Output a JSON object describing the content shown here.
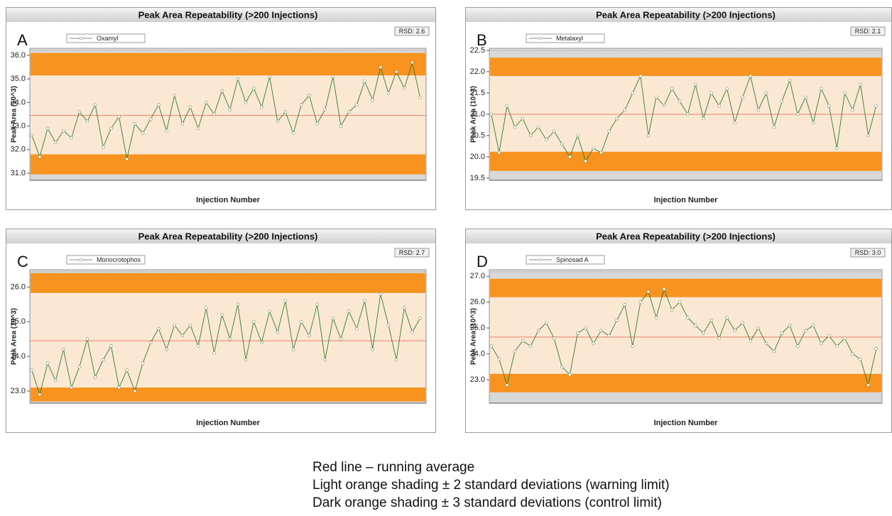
{
  "chart_data": [
    {
      "type": "line",
      "title": "Peak Area Repeatability (>200 Injections)",
      "panel_label": "A",
      "annotation": "RSD: 2.6",
      "y_label": "Peak Area (10^3)",
      "x_label": "Injection Number",
      "x": [
        1,
        5,
        9,
        13,
        17,
        21,
        25,
        29,
        33,
        37,
        41,
        45,
        49,
        53,
        57,
        61,
        65,
        69,
        73,
        77,
        81,
        85,
        89,
        93,
        97,
        101,
        105,
        109,
        113,
        117,
        121,
        125,
        129,
        133,
        137,
        141,
        145,
        149,
        153,
        157,
        161,
        165,
        169,
        173,
        177,
        181,
        185,
        189,
        193,
        197
      ],
      "series": [
        {
          "name": "Oxamyl",
          "color": "#2e7d32",
          "values": [
            32.6,
            31.7,
            32.9,
            32.3,
            32.8,
            32.5,
            33.6,
            33.2,
            33.9,
            32.1,
            32.9,
            33.4,
            31.6,
            33.1,
            32.7,
            33.3,
            33.9,
            32.8,
            34.3,
            33.1,
            33.8,
            32.9,
            34.0,
            33.5,
            34.5,
            33.7,
            35.0,
            34.0,
            34.6,
            33.8,
            35.1,
            33.2,
            33.6,
            32.7,
            33.9,
            34.3,
            33.1,
            33.7,
            35.1,
            33.0,
            33.6,
            33.9,
            34.9,
            34.1,
            35.5,
            34.4,
            35.3,
            34.6,
            35.7,
            34.2
          ]
        }
      ],
      "xlim": [
        0,
        200
      ],
      "ylim": [
        30.7,
        36.3
      ],
      "yticks": [
        {
          "value": 31,
          "label": "31.0"
        },
        {
          "value": 32,
          "label": "32.0"
        },
        {
          "value": 33,
          "label": "33.0"
        },
        {
          "value": 34,
          "label": "34.0"
        },
        {
          "value": 35,
          "label": "35.0"
        },
        {
          "value": 36,
          "label": "36.0"
        }
      ],
      "mean": 33.45,
      "warning_limits": [
        31.8,
        35.15
      ],
      "control_limits": [
        30.95,
        36.1
      ],
      "mean_color": "#e8806e",
      "warning_color": "#fbe8d3",
      "control_color": "#f7931e"
    },
    {
      "type": "line",
      "title": "Peak Area Repeatability (>200 Injections)",
      "panel_label": "B",
      "annotation": "RSD: 2.1",
      "y_label": "Peak Area (10^3)",
      "x_label": "Injection Number",
      "x": [
        1,
        5,
        9,
        13,
        17,
        21,
        25,
        29,
        33,
        37,
        41,
        45,
        49,
        53,
        57,
        61,
        65,
        69,
        73,
        77,
        81,
        85,
        89,
        93,
        97,
        101,
        105,
        109,
        113,
        117,
        121,
        125,
        129,
        133,
        137,
        141,
        145,
        149,
        153,
        157,
        161,
        165,
        169,
        173,
        177,
        181,
        185,
        189,
        193,
        197
      ],
      "series": [
        {
          "name": "Metalaxyl",
          "color": "#2e7d32",
          "values": [
            21.0,
            20.1,
            21.2,
            20.7,
            20.9,
            20.5,
            20.7,
            20.4,
            20.6,
            20.3,
            20.0,
            20.5,
            19.9,
            20.2,
            20.1,
            20.6,
            20.9,
            21.1,
            21.5,
            21.9,
            20.5,
            21.4,
            21.2,
            21.6,
            21.3,
            21.0,
            21.7,
            20.9,
            21.5,
            21.2,
            21.6,
            20.8,
            21.4,
            21.9,
            21.1,
            21.5,
            20.7,
            21.3,
            21.8,
            21.0,
            21.4,
            20.8,
            21.6,
            21.2,
            20.2,
            21.5,
            21.1,
            21.7,
            20.5,
            21.2
          ]
        }
      ],
      "xlim": [
        0,
        200
      ],
      "ylim": [
        19.45,
        22.55
      ],
      "yticks": [
        {
          "value": 19.5,
          "label": "19.5"
        },
        {
          "value": 20,
          "label": "20.0"
        },
        {
          "value": 20.5,
          "label": "20.5"
        },
        {
          "value": 21,
          "label": "21.0"
        },
        {
          "value": 21.5,
          "label": "21.5"
        },
        {
          "value": 22,
          "label": "22.0"
        },
        {
          "value": 22.5,
          "label": "22.5"
        }
      ],
      "mean": 21.0,
      "warning_limits": [
        20.12,
        21.9
      ],
      "control_limits": [
        19.67,
        22.33
      ],
      "mean_color": "#e8806e",
      "warning_color": "#fbe8d3",
      "control_color": "#f7931e"
    },
    {
      "type": "line",
      "title": "Peak Area Repeatability (>200 Injections)",
      "panel_label": "C",
      "annotation": "RSD: 2.7",
      "y_label": "Peak Area (10^3)",
      "x_label": "Injection Number",
      "x": [
        1,
        5,
        9,
        13,
        17,
        21,
        25,
        29,
        33,
        37,
        41,
        45,
        49,
        53,
        57,
        61,
        65,
        69,
        73,
        77,
        81,
        85,
        89,
        93,
        97,
        101,
        105,
        109,
        113,
        117,
        121,
        125,
        129,
        133,
        137,
        141,
        145,
        149,
        153,
        157,
        161,
        165,
        169,
        173,
        177,
        181,
        185,
        189,
        193,
        197
      ],
      "series": [
        {
          "name": "Monocrotophos",
          "color": "#2e7d32",
          "values": [
            23.6,
            22.9,
            23.8,
            23.3,
            24.2,
            23.1,
            23.7,
            24.5,
            23.4,
            23.9,
            24.3,
            23.1,
            23.6,
            23.0,
            23.8,
            24.4,
            24.8,
            24.2,
            24.9,
            24.6,
            24.9,
            24.3,
            25.4,
            24.1,
            25.2,
            24.5,
            25.5,
            23.9,
            25.0,
            24.4,
            25.3,
            24.7,
            25.6,
            24.2,
            25.0,
            24.6,
            25.5,
            23.9,
            25.1,
            24.5,
            25.3,
            24.8,
            25.6,
            24.2,
            25.8,
            24.9,
            23.9,
            25.4,
            24.7,
            25.1
          ]
        }
      ],
      "xlim": [
        0,
        200
      ],
      "ylim": [
        22.65,
        26.5
      ],
      "yticks": [
        {
          "value": 23,
          "label": "23.0"
        },
        {
          "value": 24,
          "label": "24.0"
        },
        {
          "value": 25,
          "label": "25.0"
        },
        {
          "value": 26,
          "label": "26.0"
        }
      ],
      "mean": 24.45,
      "warning_limits": [
        23.1,
        25.83
      ],
      "control_limits": [
        22.7,
        26.4
      ],
      "mean_color": "#e8806e",
      "warning_color": "#fbe8d3",
      "control_color": "#f7931e"
    },
    {
      "type": "line",
      "title": "Peak Area Repeatability (>200 Injections)",
      "panel_label": "D",
      "annotation": "RSD: 3.0",
      "y_label": "Peak Area (10^3)",
      "x_label": "Injection Number",
      "x": [
        1,
        5,
        9,
        13,
        17,
        21,
        25,
        29,
        33,
        37,
        41,
        45,
        49,
        53,
        57,
        61,
        65,
        69,
        73,
        77,
        81,
        85,
        89,
        93,
        97,
        101,
        105,
        109,
        113,
        117,
        121,
        125,
        129,
        133,
        137,
        141,
        145,
        149,
        153,
        157,
        161,
        165,
        169,
        173,
        177,
        181,
        185,
        189,
        193,
        197
      ],
      "series": [
        {
          "name": "Spinosad A",
          "color": "#2e7d32",
          "values": [
            24.3,
            23.8,
            22.8,
            24.1,
            24.5,
            24.3,
            24.9,
            25.2,
            24.6,
            23.5,
            23.2,
            24.8,
            25.0,
            24.4,
            24.9,
            24.7,
            25.3,
            25.9,
            24.3,
            26.0,
            26.4,
            25.4,
            26.5,
            25.7,
            26.0,
            25.4,
            25.1,
            24.8,
            25.3,
            24.6,
            25.4,
            24.9,
            25.2,
            24.5,
            25.0,
            24.4,
            24.1,
            24.8,
            25.1,
            24.3,
            24.9,
            25.1,
            24.4,
            24.7,
            24.3,
            24.6,
            24.0,
            23.8,
            22.8,
            24.2
          ]
        }
      ],
      "xlim": [
        0,
        200
      ],
      "ylim": [
        22.1,
        27.25
      ],
      "yticks": [
        {
          "value": 23,
          "label": "23.0"
        },
        {
          "value": 24,
          "label": "24.0"
        },
        {
          "value": 25,
          "label": "25.0"
        },
        {
          "value": 26,
          "label": "26.0"
        },
        {
          "value": 27,
          "label": "27.0"
        }
      ],
      "mean": 24.65,
      "warning_limits": [
        23.23,
        26.19
      ],
      "control_limits": [
        22.52,
        26.9
      ],
      "mean_color": "#e8806e",
      "warning_color": "#fbe8d3",
      "control_color": "#f7931e"
    }
  ],
  "notes": [
    "Red line – running average",
    "Light orange shading ± 2 standard deviations (warning limit)",
    "Dark orange shading ± 3 standard deviations (control limit)"
  ]
}
